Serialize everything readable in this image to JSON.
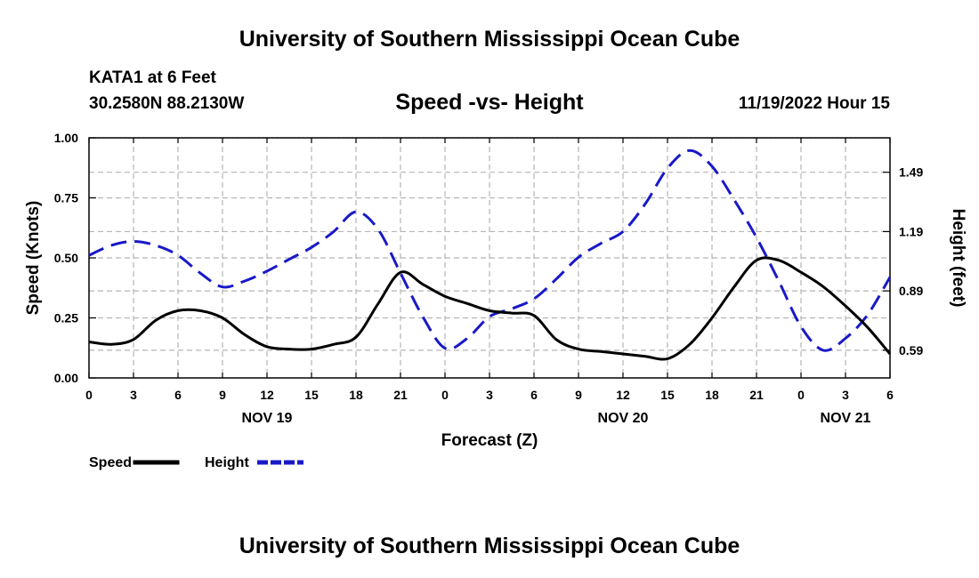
{
  "header": {
    "title": "University of Southern Mississippi Ocean Cube",
    "station": "KATA1 at 6 Feet",
    "coords": "30.2580N  88.2130W",
    "datetime": "11/19/2022 Hour 15",
    "footer_title": "University of Southern Mississippi Ocean Cube"
  },
  "chart_data": {
    "type": "line",
    "title": "Speed -vs- Height",
    "xlabel": "Forecast (Z)",
    "ylabel": "Speed (Knots)",
    "y2label": "Height (feet)",
    "xlim": [
      0,
      54
    ],
    "ylim": [
      0,
      1.0
    ],
    "y2lim": [
      0.45,
      1.664
    ],
    "x_tick_labels": [
      "0",
      "3",
      "6",
      "9",
      "12",
      "15",
      "18",
      "21",
      "0",
      "3",
      "6",
      "9",
      "12",
      "15",
      "18",
      "21",
      "0",
      "3",
      "6"
    ],
    "y_ticks": [
      0.0,
      0.25,
      0.5,
      0.75,
      1.0
    ],
    "y_tick_labels": [
      "0.00",
      "0.25",
      "0.50",
      "0.75",
      "1.00"
    ],
    "y2_ticks": [
      0.59,
      0.89,
      1.19,
      1.49
    ],
    "y2_tick_labels": [
      "0.59",
      "0.89",
      "1.19",
      "1.49"
    ],
    "date_labels": [
      {
        "x": 12,
        "label": "NOV 19"
      },
      {
        "x": 36,
        "label": "NOV 20"
      },
      {
        "x": 51,
        "label": "NOV 21"
      }
    ],
    "grid": true,
    "legend_position": "bottom-left",
    "series": [
      {
        "name": "Speed",
        "axis": "left",
        "color": "#000000",
        "dash": "solid",
        "x": [
          0,
          1.5,
          3,
          4.5,
          6,
          7.5,
          9,
          10.5,
          12,
          13.5,
          15,
          16.5,
          18,
          19.5,
          21,
          22.5,
          24,
          25.5,
          27,
          28.5,
          30,
          31.5,
          33,
          34.5,
          36,
          37.5,
          39,
          40.5,
          42,
          43.5,
          45,
          46.5,
          48,
          49.5,
          51,
          52.5,
          54
        ],
        "values": [
          0.15,
          0.14,
          0.16,
          0.24,
          0.28,
          0.28,
          0.25,
          0.18,
          0.13,
          0.12,
          0.12,
          0.14,
          0.17,
          0.31,
          0.44,
          0.39,
          0.34,
          0.31,
          0.28,
          0.27,
          0.26,
          0.16,
          0.12,
          0.11,
          0.1,
          0.09,
          0.08,
          0.14,
          0.25,
          0.38,
          0.49,
          0.49,
          0.44,
          0.38,
          0.3,
          0.21,
          0.1
        ]
      },
      {
        "name": "Height",
        "axis": "right",
        "color": "#1919c8",
        "dash": "dashed",
        "x": [
          0,
          1.5,
          3,
          4.5,
          6,
          7.5,
          9,
          10.5,
          12,
          13.5,
          15,
          16.5,
          18,
          19.5,
          21,
          22.5,
          24,
          25.5,
          27,
          28.5,
          30,
          31.5,
          33,
          34.5,
          36,
          37.5,
          39,
          40.5,
          42,
          43.5,
          45,
          46.5,
          48,
          49.5,
          51,
          52.5,
          54
        ],
        "values": [
          1.07,
          1.12,
          1.14,
          1.12,
          1.07,
          0.98,
          0.91,
          0.94,
          0.99,
          1.05,
          1.11,
          1.19,
          1.29,
          1.2,
          0.98,
          0.76,
          0.6,
          0.65,
          0.76,
          0.8,
          0.85,
          0.95,
          1.06,
          1.13,
          1.19,
          1.33,
          1.51,
          1.6,
          1.52,
          1.35,
          1.16,
          0.94,
          0.71,
          0.59,
          0.65,
          0.77,
          0.96
        ]
      }
    ]
  }
}
